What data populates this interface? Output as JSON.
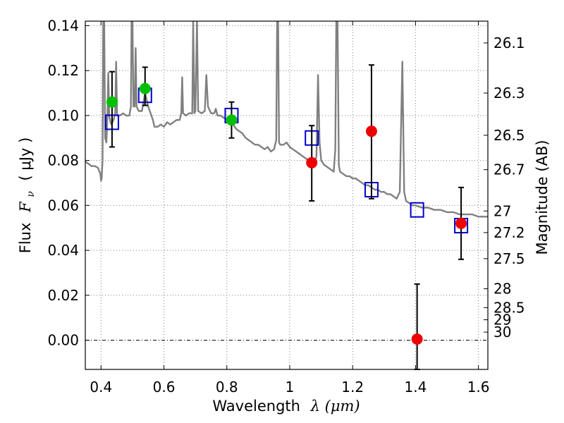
{
  "chart_data": {
    "type": "scatter",
    "title": "",
    "xlabel": "Wavelength",
    "xlabel_math": "λ (μm)",
    "ylabel": "Flux",
    "ylabel_math": "F",
    "ylabel_subscript": "ν",
    "ylabel_unit": "( μJy )",
    "y2label": "Magnitude (AB)",
    "xlim": [
      0.35,
      1.63
    ],
    "ylim": [
      -0.013,
      0.142
    ],
    "grid": true,
    "x_ticks": [
      0.4,
      0.6,
      0.8,
      1.0,
      1.2,
      1.4,
      1.6
    ],
    "x_tick_labels": [
      "0.4",
      "0.6",
      "0.8",
      "1",
      "1.2",
      "1.4",
      "1.6"
    ],
    "y_ticks": [
      0.0,
      0.02,
      0.04,
      0.06,
      0.08,
      0.1,
      0.12,
      0.14
    ],
    "y_tick_labels": [
      "0.00",
      "0.02",
      "0.04",
      "0.06",
      "0.08",
      "0.10",
      "0.12",
      "0.14"
    ],
    "y2_ticks": [
      {
        "label": "26.1",
        "flux": 0.1323
      },
      {
        "label": "26.3",
        "flux": 0.11
      },
      {
        "label": "26.5",
        "flux": 0.0912
      },
      {
        "label": "26.7",
        "flux": 0.0759
      },
      {
        "label": "27",
        "flux": 0.0575
      },
      {
        "label": "27.2",
        "flux": 0.0479
      },
      {
        "label": "27.5",
        "flux": 0.0363
      },
      {
        "label": "28",
        "flux": 0.0229
      },
      {
        "label": "28.5",
        "flux": 0.0145
      },
      {
        "label": "29",
        "flux": 0.0091
      },
      {
        "label": "30",
        "flux": 0.0036
      }
    ],
    "colors": {
      "spectrum": "#808080",
      "model_box": "#0000cc",
      "green_point": "#00c000",
      "red_point": "#ee0000",
      "errorbar": "#000000",
      "zero_line": "#000000",
      "grid": "#808080"
    },
    "series": [
      {
        "name": "model spectrum",
        "kind": "line",
        "color": "#808080",
        "points": [
          [
            0.35,
            0.0795
          ],
          [
            0.36,
            0.0785
          ],
          [
            0.37,
            0.0775
          ],
          [
            0.38,
            0.0775
          ],
          [
            0.39,
            0.0768
          ],
          [
            0.398,
            0.074
          ],
          [
            0.4,
            0.071
          ],
          [
            0.402,
            0.072
          ],
          [
            0.405,
            0.08
          ],
          [
            0.407,
            0.142
          ],
          [
            0.41,
            0.142
          ],
          [
            0.413,
            0.09
          ],
          [
            0.417,
            0.088
          ],
          [
            0.42,
            0.098
          ],
          [
            0.423,
            0.119
          ],
          [
            0.426,
            0.1
          ],
          [
            0.43,
            0.097
          ],
          [
            0.433,
            0.096
          ],
          [
            0.436,
            0.097
          ],
          [
            0.44,
            0.098
          ],
          [
            0.445,
            0.101
          ],
          [
            0.448,
            0.124
          ],
          [
            0.451,
            0.1
          ],
          [
            0.46,
            0.1
          ],
          [
            0.47,
            0.101
          ],
          [
            0.48,
            0.1
          ],
          [
            0.49,
            0.1
          ],
          [
            0.495,
            0.104
          ],
          [
            0.497,
            0.142
          ],
          [
            0.5,
            0.142
          ],
          [
            0.503,
            0.104
          ],
          [
            0.507,
            0.104
          ],
          [
            0.51,
            0.13
          ],
          [
            0.513,
            0.104
          ],
          [
            0.52,
            0.102
          ],
          [
            0.53,
            0.102
          ],
          [
            0.54,
            0.11
          ],
          [
            0.55,
            0.104
          ],
          [
            0.56,
            0.1
          ],
          [
            0.565,
            0.098
          ],
          [
            0.57,
            0.095
          ],
          [
            0.58,
            0.095
          ],
          [
            0.59,
            0.096
          ],
          [
            0.6,
            0.095
          ],
          [
            0.61,
            0.097
          ],
          [
            0.62,
            0.096
          ],
          [
            0.63,
            0.097
          ],
          [
            0.64,
            0.098
          ],
          [
            0.65,
            0.098
          ],
          [
            0.655,
            0.101
          ],
          [
            0.658,
            0.117
          ],
          [
            0.661,
            0.101
          ],
          [
            0.67,
            0.1
          ],
          [
            0.68,
            0.101
          ],
          [
            0.69,
            0.101
          ],
          [
            0.693,
            0.142
          ],
          [
            0.697,
            0.101
          ],
          [
            0.7,
            0.102
          ],
          [
            0.705,
            0.142
          ],
          [
            0.709,
            0.102
          ],
          [
            0.72,
            0.101
          ],
          [
            0.73,
            0.102
          ],
          [
            0.735,
            0.118
          ],
          [
            0.74,
            0.104
          ],
          [
            0.75,
            0.101
          ],
          [
            0.76,
            0.101
          ],
          [
            0.765,
            0.103
          ],
          [
            0.77,
            0.1
          ],
          [
            0.78,
            0.1
          ],
          [
            0.79,
            0.099
          ],
          [
            0.8,
            0.098
          ],
          [
            0.81,
            0.097
          ],
          [
            0.82,
            0.096
          ],
          [
            0.83,
            0.094
          ],
          [
            0.84,
            0.093
          ],
          [
            0.85,
            0.092
          ],
          [
            0.86,
            0.09
          ],
          [
            0.87,
            0.089
          ],
          [
            0.88,
            0.088
          ],
          [
            0.89,
            0.087
          ],
          [
            0.9,
            0.087
          ],
          [
            0.91,
            0.086
          ],
          [
            0.92,
            0.085
          ],
          [
            0.93,
            0.086
          ],
          [
            0.94,
            0.084
          ],
          [
            0.95,
            0.085
          ],
          [
            0.957,
            0.089
          ],
          [
            0.96,
            0.142
          ],
          [
            0.963,
            0.142
          ],
          [
            0.966,
            0.088
          ],
          [
            0.97,
            0.087
          ],
          [
            0.98,
            0.087
          ],
          [
            0.99,
            0.088
          ],
          [
            1.0,
            0.086
          ],
          [
            1.01,
            0.085
          ],
          [
            1.02,
            0.084
          ],
          [
            1.03,
            0.083
          ],
          [
            1.04,
            0.082
          ],
          [
            1.05,
            0.081
          ],
          [
            1.06,
            0.08
          ],
          [
            1.07,
            0.08
          ],
          [
            1.08,
            0.079
          ],
          [
            1.085,
            0.082
          ],
          [
            1.09,
            0.118
          ],
          [
            1.095,
            0.088
          ],
          [
            1.1,
            0.08
          ],
          [
            1.11,
            0.078
          ],
          [
            1.12,
            0.077
          ],
          [
            1.13,
            0.076
          ],
          [
            1.14,
            0.075
          ],
          [
            1.145,
            0.085
          ],
          [
            1.148,
            0.142
          ],
          [
            1.152,
            0.142
          ],
          [
            1.156,
            0.078
          ],
          [
            1.16,
            0.075
          ],
          [
            1.17,
            0.074
          ],
          [
            1.18,
            0.073
          ],
          [
            1.19,
            0.073
          ],
          [
            1.2,
            0.072
          ],
          [
            1.21,
            0.072
          ],
          [
            1.22,
            0.071
          ],
          [
            1.23,
            0.07
          ],
          [
            1.24,
            0.069
          ],
          [
            1.25,
            0.069
          ],
          [
            1.26,
            0.068
          ],
          [
            1.27,
            0.067
          ],
          [
            1.28,
            0.067
          ],
          [
            1.29,
            0.066
          ],
          [
            1.3,
            0.066
          ],
          [
            1.31,
            0.065
          ],
          [
            1.32,
            0.065
          ],
          [
            1.33,
            0.064
          ],
          [
            1.34,
            0.063
          ],
          [
            1.35,
            0.066
          ],
          [
            1.358,
            0.124
          ],
          [
            1.364,
            0.066
          ],
          [
            1.37,
            0.062
          ],
          [
            1.38,
            0.061
          ],
          [
            1.39,
            0.06
          ],
          [
            1.4,
            0.06
          ],
          [
            1.42,
            0.059
          ],
          [
            1.44,
            0.059
          ],
          [
            1.46,
            0.058
          ],
          [
            1.48,
            0.058
          ],
          [
            1.5,
            0.057
          ],
          [
            1.52,
            0.057
          ],
          [
            1.54,
            0.056
          ],
          [
            1.56,
            0.056
          ],
          [
            1.58,
            0.056
          ],
          [
            1.6,
            0.055
          ],
          [
            1.63,
            0.055
          ]
        ]
      },
      {
        "name": "model photometry",
        "kind": "open-square",
        "color": "#0000cc",
        "points": [
          [
            0.435,
            0.097
          ],
          [
            0.54,
            0.109
          ],
          [
            0.815,
            0.1
          ],
          [
            1.07,
            0.09
          ],
          [
            1.26,
            0.067
          ],
          [
            1.405,
            0.058
          ],
          [
            1.545,
            0.051
          ]
        ]
      },
      {
        "name": "observed (green)",
        "kind": "filled-circle",
        "color": "#00c000",
        "points": [
          {
            "x": 0.435,
            "y": 0.106,
            "err_low": 0.086,
            "err_high": 0.1195
          },
          {
            "x": 0.54,
            "y": 0.112,
            "err_low": 0.1045,
            "err_high": 0.1215
          },
          {
            "x": 0.815,
            "y": 0.098,
            "err_low": 0.09,
            "err_high": 0.106
          }
        ]
      },
      {
        "name": "observed (red)",
        "kind": "filled-circle",
        "color": "#ee0000",
        "points": [
          {
            "x": 1.07,
            "y": 0.079,
            "err_low": 0.062,
            "err_high": 0.0955
          },
          {
            "x": 1.26,
            "y": 0.093,
            "err_low": 0.063,
            "err_high": 0.1225
          },
          {
            "x": 1.405,
            "y": 0.0005,
            "err_low": -0.013,
            "err_high": 0.025
          },
          {
            "x": 1.545,
            "y": 0.052,
            "err_low": 0.036,
            "err_high": 0.068
          }
        ]
      }
    ]
  }
}
